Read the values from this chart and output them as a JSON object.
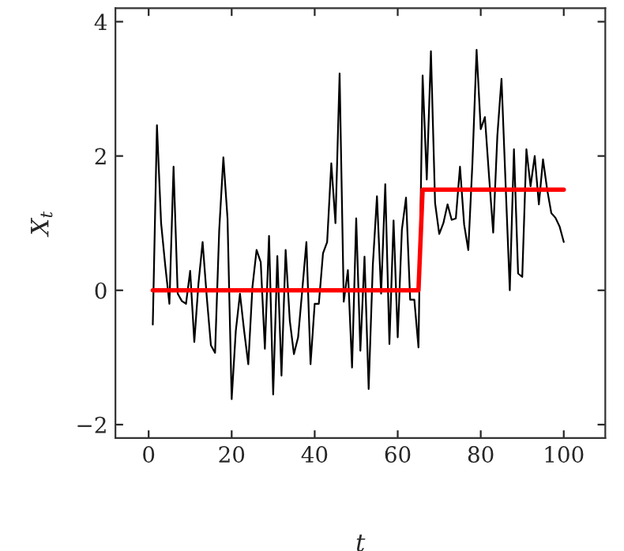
{
  "chart_data": {
    "type": "line",
    "xlabel": "t",
    "ylabel": "X$_{t}$",
    "series": [
      {
        "color": "#000000",
        "x": [
          1,
          2,
          3,
          4,
          5,
          6,
          7,
          8,
          9,
          10,
          11,
          12,
          13,
          14,
          15,
          16,
          17,
          18,
          19,
          20,
          21,
          22,
          23,
          24,
          25,
          26,
          27,
          28,
          29,
          30,
          31,
          32,
          33,
          34,
          35,
          36,
          37,
          38,
          39,
          40,
          41,
          42,
          43,
          44,
          45,
          46,
          47,
          48,
          49,
          50,
          51,
          52,
          53,
          54,
          55,
          56,
          57,
          58,
          59,
          60,
          61,
          62,
          63,
          64,
          65,
          66,
          67,
          68,
          69,
          70,
          71,
          72,
          73,
          74,
          75,
          76,
          77,
          78,
          79,
          80,
          81,
          82,
          83,
          84,
          85,
          86,
          87,
          88,
          89,
          90,
          91,
          92,
          93,
          94,
          95,
          96,
          97,
          98,
          99,
          100
        ],
        "values": [
          -0.51,
          2.46,
          1.0,
          0.37,
          -0.2,
          1.84,
          -0.05,
          -0.16,
          -0.2,
          0.29,
          -0.77,
          0.1,
          0.72,
          -0.1,
          -0.82,
          -0.93,
          0.9,
          1.98,
          1.07,
          -1.62,
          -0.6,
          -0.05,
          -0.6,
          -1.1,
          0.05,
          0.6,
          0.42,
          -0.87,
          0.81,
          -1.55,
          0.51,
          -1.27,
          0.6,
          -0.45,
          -0.95,
          -0.7,
          0.0,
          0.72,
          -1.1,
          -0.2,
          -0.2,
          0.55,
          0.72,
          1.89,
          1.0,
          3.23,
          -0.17,
          0.3,
          -1.15,
          1.07,
          -0.9,
          0.5,
          -1.47,
          0.37,
          1.4,
          -0.05,
          1.58,
          -0.8,
          1.04,
          -0.7,
          0.9,
          1.38,
          -0.14,
          -0.14,
          -0.85,
          3.2,
          1.65,
          3.56,
          1.3,
          0.84,
          1.0,
          1.28,
          1.05,
          1.07,
          1.84,
          0.98,
          0.6,
          1.9,
          3.58,
          2.4,
          2.58,
          1.7,
          0.86,
          2.3,
          3.15,
          1.56,
          0.0,
          2.1,
          0.25,
          0.2,
          2.1,
          1.55,
          2.0,
          1.28,
          1.95,
          1.5,
          1.15,
          1.08,
          0.95,
          0.72
        ]
      },
      {
        "color": "#ff0000",
        "x": [
          1,
          65,
          66,
          100
        ],
        "values": [
          0,
          0,
          1.5,
          1.5
        ]
      }
    ],
    "xlim": [
      -8,
      110
    ],
    "xticks": [
      0,
      20,
      40,
      60,
      80,
      100
    ],
    "ylim": [
      -2.2,
      4.2
    ],
    "yticks": [
      {
        "value": -2,
        "label": "−2"
      },
      0,
      2,
      4
    ],
    "grid": false,
    "legend": false
  }
}
